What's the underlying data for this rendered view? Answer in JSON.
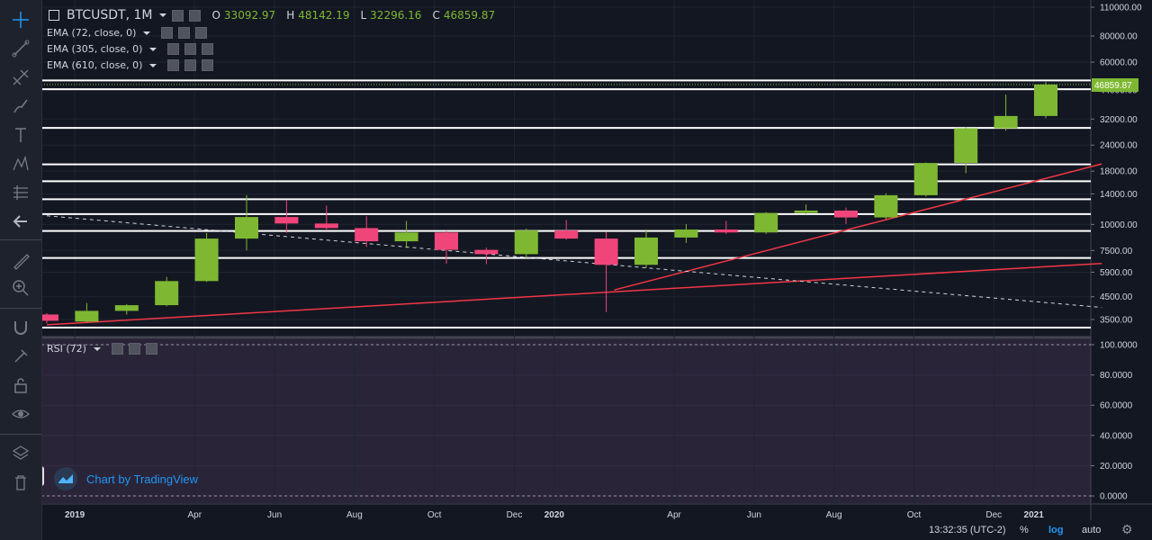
{
  "legend": {
    "symbol": "BTCUSDT, 1M",
    "o_label": "O",
    "o": "33092.97",
    "h_label": "H",
    "h": "48142.19",
    "l_label": "L",
    "l": "32296.16",
    "c_label": "C",
    "c": "46859.87",
    "indicators": [
      "EMA (72, close, 0)",
      "EMA (305, close, 0)",
      "EMA (610, close, 0)"
    ],
    "rsi": "RSI (72)"
  },
  "brand": "Chart by TradingView",
  "bottom_bar": {
    "time": "13:32:35 (UTC-2)",
    "percent": "%",
    "log": "log",
    "auto": "auto"
  },
  "last_price_label": "46859.87",
  "colors": {
    "up": "#7eb832",
    "down": "#f0457a",
    "background": "#131722",
    "trend": "#f23645",
    "hline": "#ffffff",
    "rsi_bg": "#2a2438"
  },
  "chart_data": {
    "type": "candlestick",
    "scale": "log",
    "price_ticks": [
      "110000.00",
      "80000.00",
      "60000.00",
      "44000.00",
      "32000.00",
      "24000.00",
      "18000.00",
      "14000.00",
      "10000.00",
      "7500.00",
      "5900.00",
      "4500.00",
      "3500.00"
    ],
    "rsi_ticks": [
      "100.0000",
      "80.0000",
      "60.0000",
      "40.0000",
      "20.0000",
      "0.0000"
    ],
    "x_ticks": [
      "2019",
      "Apr",
      "Jun",
      "Aug",
      "Oct",
      "Dec",
      "2020",
      "Apr",
      "Jun",
      "Aug",
      "Oct",
      "Dec",
      "2021"
    ],
    "candles": [
      {
        "o": 3700,
        "h": 3750,
        "l": 3350,
        "c": 3450
      },
      {
        "o": 3420,
        "h": 4200,
        "l": 3390,
        "c": 3850
      },
      {
        "o": 3850,
        "h": 4150,
        "l": 3700,
        "c": 4100
      },
      {
        "o": 4100,
        "h": 5600,
        "l": 4050,
        "c": 5350
      },
      {
        "o": 5350,
        "h": 9100,
        "l": 5300,
        "c": 8550
      },
      {
        "o": 8550,
        "h": 13800,
        "l": 7500,
        "c": 10850
      },
      {
        "o": 10850,
        "h": 13100,
        "l": 9100,
        "c": 10100
      },
      {
        "o": 10100,
        "h": 12300,
        "l": 9350,
        "c": 9600
      },
      {
        "o": 9600,
        "h": 10950,
        "l": 7800,
        "c": 8300
      },
      {
        "o": 8300,
        "h": 10400,
        "l": 7700,
        "c": 9150
      },
      {
        "o": 9150,
        "h": 9300,
        "l": 6500,
        "c": 7550
      },
      {
        "o": 7550,
        "h": 7750,
        "l": 6450,
        "c": 7200
      },
      {
        "o": 7200,
        "h": 9550,
        "l": 6900,
        "c": 9350
      },
      {
        "o": 9350,
        "h": 10500,
        "l": 8450,
        "c": 8550
      },
      {
        "o": 8550,
        "h": 9200,
        "l": 3800,
        "c": 6400
      },
      {
        "o": 6400,
        "h": 9450,
        "l": 6200,
        "c": 8650
      },
      {
        "o": 8650,
        "h": 10050,
        "l": 8150,
        "c": 9450
      },
      {
        "o": 9450,
        "h": 10400,
        "l": 9000,
        "c": 9150
      },
      {
        "o": 9150,
        "h": 11450,
        "l": 9000,
        "c": 11350
      },
      {
        "o": 11350,
        "h": 12450,
        "l": 11200,
        "c": 11650
      },
      {
        "o": 11650,
        "h": 12050,
        "l": 10050,
        "c": 10800
      },
      {
        "o": 10800,
        "h": 14100,
        "l": 10600,
        "c": 13800
      },
      {
        "o": 13800,
        "h": 19800,
        "l": 13600,
        "c": 19700
      },
      {
        "o": 19700,
        "h": 29300,
        "l": 17600,
        "c": 28900
      },
      {
        "o": 28900,
        "h": 41900,
        "l": 28100,
        "c": 33100
      },
      {
        "o": 33093,
        "h": 48142,
        "l": 32296,
        "c": 46860
      }
    ],
    "horizontal_levels": [
      49000,
      44500,
      29000,
      19400,
      16100,
      13200,
      11200,
      9300,
      6900,
      3000
    ],
    "trend_lines": [
      {
        "from": [
          0,
          3300
        ],
        "to": [
          26.4,
          6500
        ],
        "style": "solid"
      },
      {
        "from": [
          14.2,
          4850
        ],
        "to": [
          26.4,
          19500
        ],
        "style": "solid"
      },
      {
        "from": [
          0,
          11000
        ],
        "to": [
          26.4,
          4000
        ],
        "style": "dashed"
      }
    ]
  }
}
